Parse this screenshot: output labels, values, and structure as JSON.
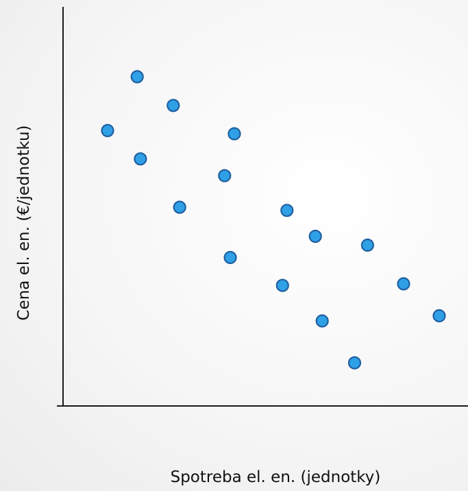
{
  "chart_data": {
    "type": "scatter",
    "xlabel": "Spotreba el. en. (jednotky)",
    "ylabel": "Cena  el. en. (€/jednotku)",
    "xlim": [
      0,
      100
    ],
    "ylim": [
      0,
      100
    ],
    "grid": false,
    "series": [
      {
        "points": [
          {
            "x": 18.3,
            "y": 82.5
          },
          {
            "x": 27.2,
            "y": 75.3
          },
          {
            "x": 11.0,
            "y": 69.0
          },
          {
            "x": 42.3,
            "y": 68.2
          },
          {
            "x": 19.1,
            "y": 61.9
          },
          {
            "x": 39.9,
            "y": 57.7
          },
          {
            "x": 28.8,
            "y": 49.8
          },
          {
            "x": 55.3,
            "y": 49.0
          },
          {
            "x": 62.3,
            "y": 42.5
          },
          {
            "x": 75.2,
            "y": 40.3
          },
          {
            "x": 41.3,
            "y": 37.2
          },
          {
            "x": 54.2,
            "y": 30.2
          },
          {
            "x": 84.1,
            "y": 30.6
          },
          {
            "x": 64.0,
            "y": 21.3
          },
          {
            "x": 92.9,
            "y": 22.6
          },
          {
            "x": 72.0,
            "y": 10.8
          }
        ]
      }
    ],
    "colors": {
      "point_fill": "#2fa0e6",
      "point_stroke": "#1f5fa0",
      "axis": "#1a1a1a"
    }
  }
}
